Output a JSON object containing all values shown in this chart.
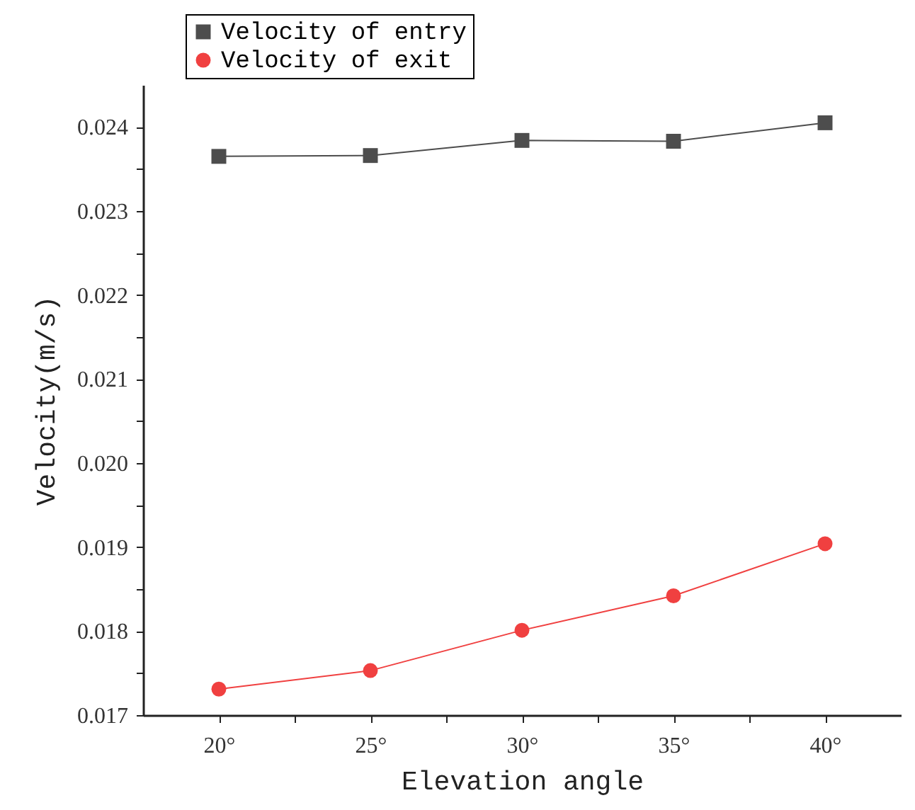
{
  "chart_data": {
    "type": "line",
    "xlabel": "Elevation angle",
    "ylabel": "Velocity(m/s)",
    "x": [
      20,
      25,
      30,
      35,
      40
    ],
    "series": [
      {
        "name": "Velocity of entry",
        "color": "#4d4d4d",
        "marker": "square",
        "values": [
          0.02365,
          0.02366,
          0.02384,
          0.02383,
          0.02405
        ]
      },
      {
        "name": "Velocity of exit",
        "color": "#f04040",
        "marker": "circle",
        "values": [
          0.01731,
          0.01753,
          0.01801,
          0.01842,
          0.01904
        ]
      }
    ],
    "xlim": [
      17.5,
      42.5
    ],
    "xticks": [
      {
        "value": 20,
        "label": "20°"
      },
      {
        "value": 22.5,
        "label": null
      },
      {
        "value": 25,
        "label": "25°"
      },
      {
        "value": 27.5,
        "label": null
      },
      {
        "value": 30,
        "label": "30°"
      },
      {
        "value": 32.5,
        "label": null
      },
      {
        "value": 35,
        "label": "35°"
      },
      {
        "value": 37.5,
        "label": null
      },
      {
        "value": 40,
        "label": "40°"
      }
    ],
    "ylim": [
      0.017,
      0.0245
    ],
    "yticks": [
      0.017,
      {
        "value": 0.0175,
        "label": null
      },
      0.018,
      {
        "value": 0.0185,
        "label": null
      },
      0.019,
      {
        "value": 0.0195,
        "label": null
      },
      {
        "value": 0.02,
        "label": "0.020"
      },
      {
        "value": 0.0205,
        "label": null
      },
      0.021,
      {
        "value": 0.0215,
        "label": null
      },
      0.022,
      {
        "value": 0.0225,
        "label": null
      },
      0.023,
      {
        "value": 0.0235,
        "label": null
      },
      0.024
    ],
    "grid": false,
    "legend": "top left",
    "line_style": "solid"
  }
}
